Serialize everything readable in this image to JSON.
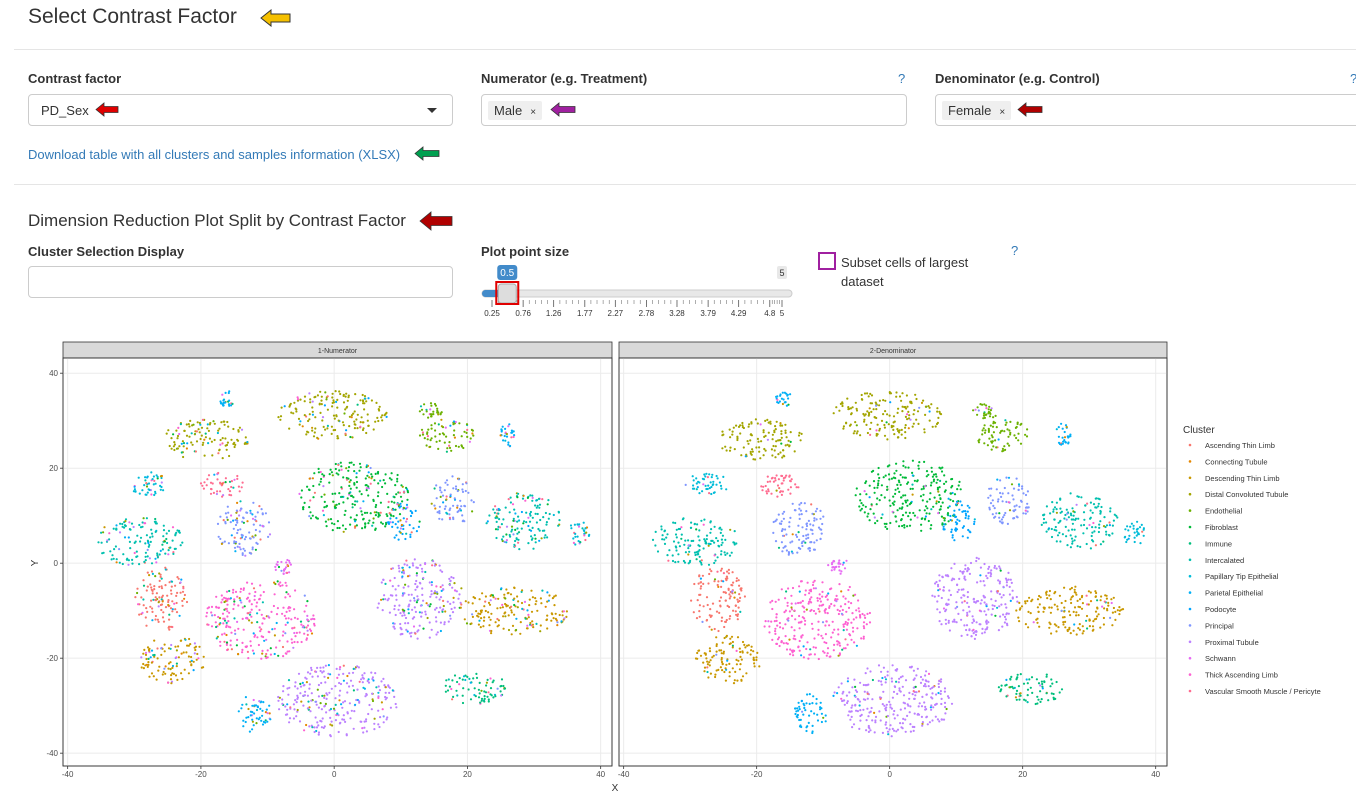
{
  "header": {
    "title": "Select Contrast Factor"
  },
  "contrast": {
    "factor_label": "Contrast factor",
    "factor_value": "PD_Sex",
    "numerator_label": "Numerator (e.g. Treatment)",
    "numerator_value": "Male",
    "denominator_label": "Denominator (e.g. Control)",
    "denominator_value": "Female",
    "help": "?",
    "remove": "×"
  },
  "download_link": "Download table with all clusters and samples information (XLSX)",
  "section_title": "Dimension Reduction Plot Split by Contrast Factor",
  "controls": {
    "cluster_label": "Cluster Selection Display",
    "point_size_label": "Plot point size",
    "slider": {
      "value": 0.5,
      "max": 5,
      "ticks": [
        0.25,
        0.76,
        1.26,
        1.77,
        2.27,
        2.78,
        3.28,
        3.79,
        4.29,
        4.8,
        5
      ]
    },
    "subset_label": "Subset cells of largest dataset",
    "help": "?"
  },
  "plot": {
    "panels": [
      "1-Numerator",
      "2-Denominator"
    ],
    "xlabel": "X",
    "ylabel": "Y",
    "xlim": [
      -40.7,
      41.7
    ],
    "ylim": [
      -42.7,
      43.2
    ],
    "xticks": [
      -40,
      -20,
      0,
      20,
      40
    ],
    "yticks": [
      40,
      20,
      0,
      -20,
      -40
    ],
    "grid": true,
    "legend_title": "Cluster",
    "legend": [
      {
        "name": "Ascending Thin Limb",
        "color": "#F8766D"
      },
      {
        "name": "Connecting Tubule",
        "color": "#E58700"
      },
      {
        "name": "Descending Thin Limb",
        "color": "#C99800"
      },
      {
        "name": "Distal Convoluted Tubule",
        "color": "#A3A500"
      },
      {
        "name": "Endothelial",
        "color": "#6BB100"
      },
      {
        "name": "Fibroblast",
        "color": "#00BA38"
      },
      {
        "name": "Immune",
        "color": "#00BF7D"
      },
      {
        "name": "Intercalated",
        "color": "#00C0AF"
      },
      {
        "name": "Papillary Tip Epithelial",
        "color": "#00BCD8"
      },
      {
        "name": "Parietal Epithelial",
        "color": "#00B0F6"
      },
      {
        "name": "Podocyte",
        "color": "#00A5FF"
      },
      {
        "name": "Principal",
        "color": "#7F96FF"
      },
      {
        "name": "Proximal Tubule",
        "color": "#BC81FF"
      },
      {
        "name": "Schwann",
        "color": "#E76BF3"
      },
      {
        "name": "Thick Ascending Limb",
        "color": "#FD61D1"
      },
      {
        "name": "Vascular Smooth Muscle / Pericyte",
        "color": "#FF6C90"
      }
    ]
  }
}
